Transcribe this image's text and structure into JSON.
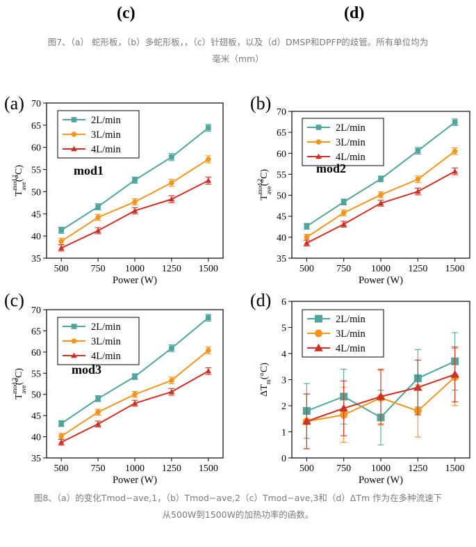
{
  "top_labels": {
    "left": "(c)",
    "right": "(d)"
  },
  "caption_top": {
    "line1": "图7、（a） 蛇形板，（b）多蛇形板，，（c）针翅板，以及（d）DMSP和DPFP的歧管。所有单位均为",
    "line2": "毫米（mm）"
  },
  "caption_bottom": {
    "line1": "图8、（a）的变化Tmod−ave,1，（b）Tmod−ave,2（c）Tmod−ave,3和（d）ΔTm 作为在多种流速下",
    "line2": "从500W到1500W的加热功率的函数。"
  },
  "colors": {
    "s2": "#4fa59c",
    "s3": "#f2951e",
    "s4": "#cc3125"
  },
  "chart_data": [
    {
      "panel": "(a)",
      "type": "line",
      "annotation": "mod1",
      "xlabel": "Power (W)",
      "ylabel": "T_ave^mod,1(°C)",
      "ylabel_main": "T",
      "ylabel_sup": "mod,1",
      "ylabel_sub": "ave",
      "ylabel_unit": "(°C)",
      "x": [
        500,
        750,
        1000,
        1250,
        1500
      ],
      "xlim": [
        400,
        1600
      ],
      "ylim": [
        35,
        70
      ],
      "yticks": [
        35,
        40,
        45,
        50,
        55,
        60,
        65,
        70
      ],
      "series": [
        {
          "name": "2L/min",
          "values": [
            41.3,
            46.6,
            52.6,
            57.8,
            64.4
          ],
          "errors": [
            0.7,
            0.7,
            0.7,
            0.8,
            0.8
          ]
        },
        {
          "name": "3L/min",
          "values": [
            38.8,
            44.2,
            47.7,
            52.0,
            57.3
          ],
          "errors": [
            0.7,
            0.7,
            0.7,
            0.8,
            0.8
          ]
        },
        {
          "name": "4L/min",
          "values": [
            37.3,
            41.2,
            45.7,
            48.3,
            52.5
          ],
          "errors": [
            0.7,
            0.7,
            0.7,
            0.8,
            0.8
          ]
        }
      ]
    },
    {
      "panel": "(b)",
      "type": "line",
      "annotation": "mod2",
      "xlabel": "Power (W)",
      "ylabel": "T_ave^mod,2(°C)",
      "ylabel_main": "T",
      "ylabel_sup": "mod,2",
      "ylabel_sub": "ave",
      "ylabel_unit": "(°C)",
      "x": [
        500,
        750,
        1000,
        1250,
        1500
      ],
      "xlim": [
        400,
        1600
      ],
      "ylim": [
        35,
        70
      ],
      "yticks": [
        35,
        40,
        45,
        50,
        55,
        60,
        65,
        70
      ],
      "series": [
        {
          "name": "2L/min",
          "values": [
            42.6,
            48.4,
            53.9,
            60.6,
            67.4
          ],
          "errors": [
            0.7,
            0.7,
            0.7,
            0.8,
            0.8
          ]
        },
        {
          "name": "3L/min",
          "values": [
            40.0,
            45.8,
            50.1,
            53.8,
            60.5
          ],
          "errors": [
            0.7,
            0.7,
            0.7,
            0.8,
            0.8
          ]
        },
        {
          "name": "4L/min",
          "values": [
            38.6,
            43.1,
            48.1,
            50.9,
            55.7
          ],
          "errors": [
            0.7,
            0.7,
            0.7,
            0.8,
            0.8
          ]
        }
      ]
    },
    {
      "panel": "(c)",
      "type": "line",
      "annotation": "mod3",
      "xlabel": "Power (W)",
      "ylabel": "T_ave^mod,3(°C)",
      "ylabel_main": "T",
      "ylabel_sup": "mod,3",
      "ylabel_sub": "ave",
      "ylabel_unit": "(°C)",
      "x": [
        500,
        750,
        1000,
        1250,
        1500
      ],
      "xlim": [
        400,
        1600
      ],
      "ylim": [
        35,
        70
      ],
      "yticks": [
        35,
        40,
        45,
        50,
        55,
        60,
        65,
        70
      ],
      "series": [
        {
          "name": "2L/min",
          "values": [
            43.1,
            49.0,
            54.2,
            60.9,
            68.1
          ],
          "errors": [
            0.7,
            0.7,
            0.7,
            0.8,
            0.8
          ]
        },
        {
          "name": "3L/min",
          "values": [
            40.1,
            45.8,
            50.0,
            53.3,
            60.4
          ],
          "errors": [
            0.7,
            0.7,
            0.7,
            0.8,
            0.8
          ]
        },
        {
          "name": "4L/min",
          "values": [
            38.7,
            43.0,
            47.9,
            50.6,
            55.5
          ],
          "errors": [
            0.7,
            0.7,
            0.7,
            0.8,
            0.8
          ]
        }
      ]
    },
    {
      "panel": "(d)",
      "type": "line",
      "xlabel": "Power (W)",
      "ylabel": "ΔT_m(°C)",
      "ylabel_main": "ΔT",
      "ylabel_sup": "",
      "ylabel_sub": "m",
      "ylabel_unit": "(°C)",
      "x": [
        500,
        750,
        1000,
        1250,
        1500
      ],
      "xlim": [
        400,
        1600
      ],
      "ylim": [
        0,
        6
      ],
      "yticks": [
        0,
        1,
        2,
        3,
        4,
        5,
        6
      ],
      "series": [
        {
          "name": "2L/min",
          "values": [
            1.8,
            2.35,
            1.55,
            3.05,
            3.7
          ],
          "errors": [
            1.05,
            1.05,
            1.05,
            1.1,
            1.1
          ]
        },
        {
          "name": "3L/min",
          "values": [
            1.4,
            1.65,
            2.3,
            1.8,
            3.1
          ],
          "errors": [
            1.05,
            1.05,
            1.05,
            1.0,
            1.1
          ]
        },
        {
          "name": "4L/min",
          "values": [
            1.4,
            1.9,
            2.35,
            2.7,
            3.2
          ],
          "errors": [
            1.05,
            1.05,
            1.05,
            1.05,
            1.05
          ]
        }
      ]
    }
  ]
}
